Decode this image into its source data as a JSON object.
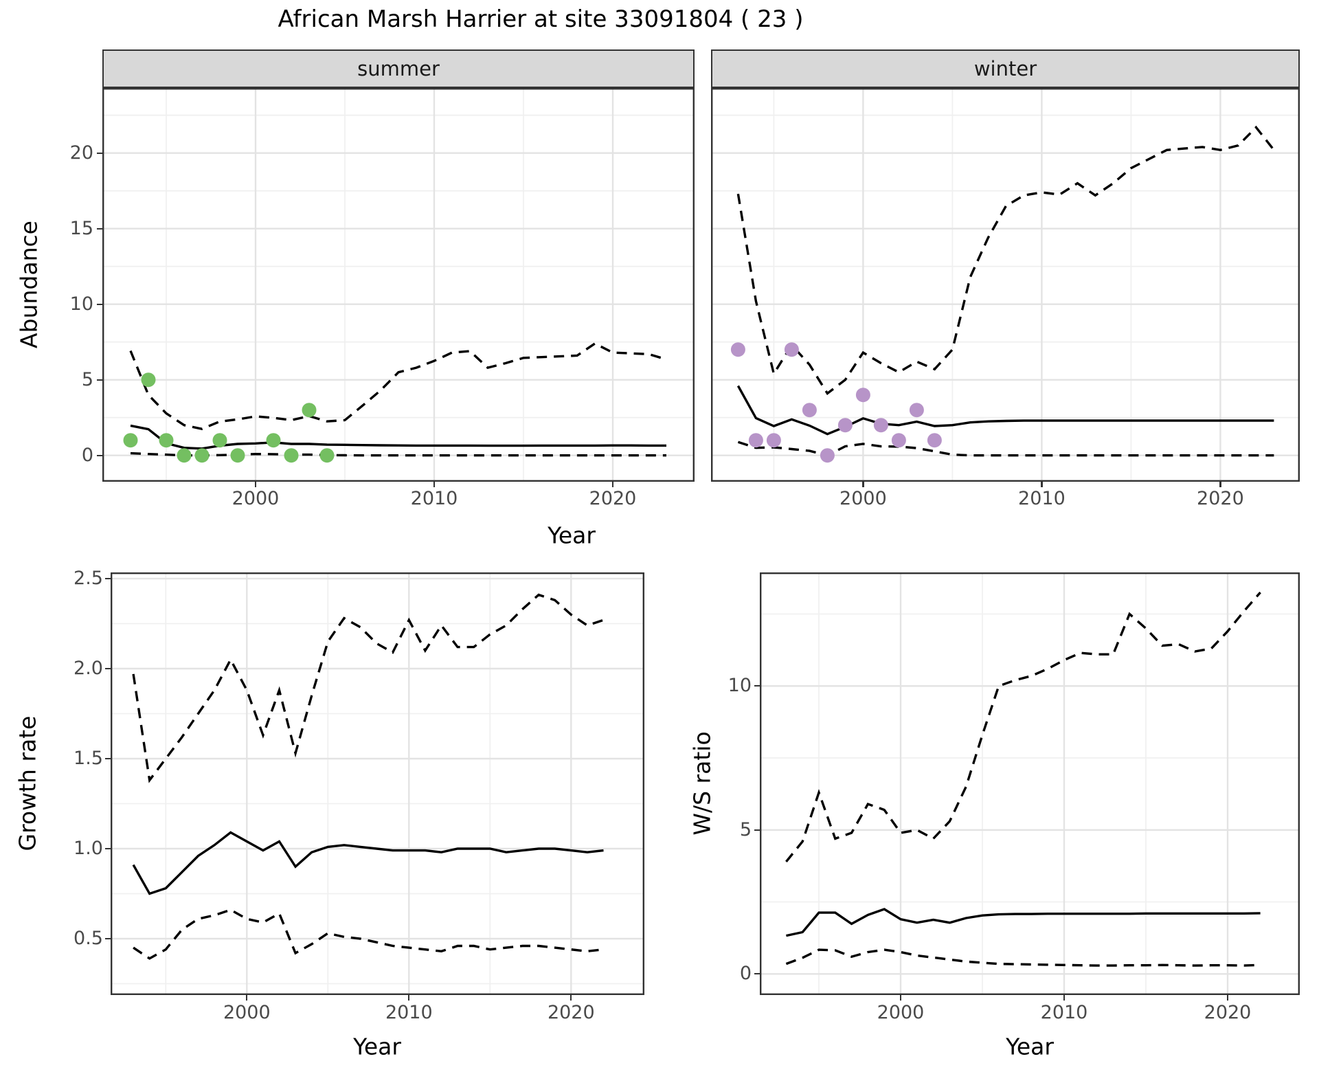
{
  "title": "African Marsh Harrier at site 33091804 ( 23 )",
  "colors": {
    "summer_point": "#74bf61",
    "winter_point": "#b794c8",
    "line": "#000000",
    "strip_bg": "#d8d8d8",
    "grid_major": "#e3e3e3",
    "grid_minor": "#f0f0f0",
    "panel_border": "#333333",
    "tick_label": "#4a4a4a"
  },
  "facets": {
    "summer": "summer",
    "winter": "winter"
  },
  "axis_titles": {
    "abundance": "Abundance",
    "year_top": "Year",
    "growth": "Growth rate",
    "ws": "W/S ratio",
    "year_bottom_left": "Year",
    "year_bottom_right": "Year"
  },
  "chart_data": [
    {
      "type": "line",
      "panel": "summer",
      "title": "summer",
      "xlabel": "Year",
      "ylabel": "Abundance",
      "xlim": [
        1991.4,
        2024.6
      ],
      "ylim": [
        -1.74,
        24.3
      ],
      "x_tick_values": [
        2000,
        2010,
        2020
      ],
      "x_tick_labels": [
        "2000",
        "2010",
        "2020"
      ],
      "y_tick_values": [
        0,
        5,
        10,
        15,
        20
      ],
      "y_tick_labels": [
        "0",
        "5",
        "10",
        "15",
        "20"
      ],
      "years": [
        1993,
        1994,
        1995,
        1996,
        1997,
        1998,
        1999,
        2000,
        2001,
        2002,
        2003,
        2004,
        2005,
        2006,
        2007,
        2008,
        2009,
        2010,
        2011,
        2012,
        2013,
        2014,
        2015,
        2016,
        2017,
        2018,
        2019,
        2020,
        2021,
        2022,
        2023
      ],
      "series": [
        {
          "name": "median",
          "style": "solid",
          "values": [
            1.97,
            1.73,
            0.8,
            0.5,
            0.45,
            0.64,
            0.76,
            0.79,
            0.86,
            0.76,
            0.76,
            0.71,
            0.7,
            0.68,
            0.67,
            0.66,
            0.65,
            0.65,
            0.65,
            0.65,
            0.64,
            0.64,
            0.64,
            0.65,
            0.65,
            0.65,
            0.65,
            0.66,
            0.66,
            0.65,
            0.65
          ]
        },
        {
          "name": "upper 95% CI",
          "style": "dashed",
          "values": [
            6.92,
            4.0,
            2.78,
            2.0,
            1.75,
            2.24,
            2.38,
            2.58,
            2.48,
            2.33,
            2.6,
            2.25,
            2.33,
            3.3,
            4.3,
            5.5,
            5.8,
            6.25,
            6.8,
            6.9,
            5.8,
            6.1,
            6.45,
            6.5,
            6.55,
            6.6,
            7.4,
            6.8,
            6.75,
            6.7,
            6.35
          ]
        },
        {
          "name": "lower 95% CI",
          "style": "dashed",
          "values": [
            0.14,
            0.09,
            0.05,
            0.0,
            0.0,
            0.02,
            0.05,
            0.09,
            0.08,
            0.05,
            0.05,
            0.02,
            0.01,
            0.0,
            0.0,
            0.0,
            0.0,
            0.0,
            0.0,
            0.0,
            0.0,
            0.0,
            0.0,
            0.0,
            0.0,
            0.0,
            0.0,
            0.0,
            0.0,
            0.0,
            0.0
          ]
        }
      ],
      "points": {
        "name": "observed counts",
        "color_key": "summer_point",
        "years": [
          1993,
          1994,
          1995,
          1996,
          1997,
          1998,
          1999,
          2001,
          2002,
          2003,
          2004
        ],
        "values": [
          1,
          5,
          1,
          0,
          0,
          1,
          0,
          1,
          0,
          3,
          0
        ]
      }
    },
    {
      "type": "line",
      "panel": "winter",
      "title": "winter",
      "xlabel": "Year",
      "ylabel": "Abundance",
      "xlim": [
        1991.5,
        2024.4
      ],
      "ylim": [
        -1.74,
        24.3
      ],
      "x_tick_values": [
        2000,
        2010,
        2020
      ],
      "x_tick_labels": [
        "2000",
        "2010",
        "2020"
      ],
      "y_tick_values": [
        0,
        5,
        10,
        15,
        20
      ],
      "y_tick_labels": [
        "0",
        "5",
        "10",
        "15",
        "20"
      ],
      "years": [
        1993,
        1994,
        1995,
        1996,
        1997,
        1998,
        1999,
        2000,
        2001,
        2002,
        2003,
        2004,
        2005,
        2006,
        2007,
        2008,
        2009,
        2010,
        2011,
        2012,
        2013,
        2014,
        2015,
        2016,
        2017,
        2018,
        2019,
        2020,
        2021,
        2022,
        2023
      ],
      "series": [
        {
          "name": "median",
          "style": "solid",
          "values": [
            4.6,
            2.47,
            1.94,
            2.38,
            1.97,
            1.41,
            1.89,
            2.45,
            2.09,
            2.0,
            2.23,
            1.94,
            2.0,
            2.18,
            2.25,
            2.28,
            2.3,
            2.3,
            2.3,
            2.3,
            2.3,
            2.3,
            2.3,
            2.3,
            2.3,
            2.3,
            2.3,
            2.3,
            2.3,
            2.3,
            2.3
          ]
        },
        {
          "name": "upper 95% CI",
          "style": "dashed",
          "values": [
            17.3,
            10.2,
            5.4,
            7.3,
            6.0,
            4.1,
            5.0,
            6.8,
            6.1,
            5.5,
            6.2,
            5.7,
            7.0,
            11.8,
            14.4,
            16.5,
            17.2,
            17.4,
            17.25,
            18.0,
            17.2,
            18.0,
            19.0,
            19.6,
            20.2,
            20.3,
            20.4,
            20.2,
            20.5,
            21.7,
            20.2
          ]
        },
        {
          "name": "lower 95% CI",
          "style": "dashed",
          "values": [
            0.88,
            0.5,
            0.53,
            0.42,
            0.3,
            0.0,
            0.6,
            0.76,
            0.6,
            0.58,
            0.48,
            0.27,
            0.05,
            0.0,
            0.0,
            0.0,
            0.0,
            0.0,
            0.0,
            0.0,
            0.0,
            0.0,
            0.0,
            0.0,
            0.0,
            0.0,
            0.0,
            0.0,
            0.0,
            0.0,
            0.0
          ]
        }
      ],
      "points": {
        "name": "observed counts",
        "color_key": "winter_point",
        "years": [
          1993,
          1994,
          1995,
          1996,
          1997,
          1998,
          1999,
          2000,
          2001,
          2002,
          2003,
          2004
        ],
        "values": [
          7,
          1,
          1,
          7,
          3,
          0,
          2,
          4,
          2,
          1,
          3,
          1
        ]
      }
    },
    {
      "type": "line",
      "panel": "growth",
      "title": "",
      "xlabel": "Year",
      "ylabel": "Growth rate",
      "xlim": [
        1991.6,
        2024.5
      ],
      "ylim": [
        0.19,
        2.53
      ],
      "x_tick_values": [
        2000,
        2010,
        2020
      ],
      "x_tick_labels": [
        "2000",
        "2010",
        "2020"
      ],
      "y_tick_values": [
        0.5,
        1.0,
        1.5,
        2.0,
        2.5
      ],
      "y_tick_labels": [
        "0.5",
        "1.0",
        "1.5",
        "2.0",
        "2.5"
      ],
      "years": [
        1993,
        1994,
        1995,
        1996,
        1997,
        1998,
        1999,
        2000,
        2001,
        2002,
        2003,
        2004,
        2005,
        2006,
        2007,
        2008,
        2009,
        2010,
        2011,
        2012,
        2013,
        2014,
        2015,
        2016,
        2017,
        2018,
        2019,
        2020,
        2021,
        2022
      ],
      "series": [
        {
          "name": "median",
          "style": "solid",
          "values": [
            0.91,
            0.75,
            0.78,
            0.87,
            0.96,
            1.02,
            1.09,
            1.04,
            0.99,
            1.04,
            0.9,
            0.98,
            1.01,
            1.02,
            1.01,
            1.0,
            0.99,
            0.99,
            0.99,
            0.98,
            1.0,
            1.0,
            1.0,
            0.98,
            0.99,
            1.0,
            1.0,
            0.99,
            0.98,
            0.99
          ]
        },
        {
          "name": "upper 95% CI",
          "style": "dashed",
          "values": [
            1.97,
            1.38,
            1.5,
            1.62,
            1.75,
            1.88,
            2.05,
            1.88,
            1.63,
            1.88,
            1.53,
            1.85,
            2.15,
            2.28,
            2.23,
            2.14,
            2.09,
            2.27,
            2.1,
            2.24,
            2.12,
            2.12,
            2.19,
            2.24,
            2.33,
            2.41,
            2.38,
            2.3,
            2.24,
            2.27
          ]
        },
        {
          "name": "lower 95% CI",
          "style": "dashed",
          "values": [
            0.45,
            0.39,
            0.44,
            0.55,
            0.61,
            0.63,
            0.66,
            0.61,
            0.59,
            0.64,
            0.42,
            0.47,
            0.53,
            0.51,
            0.5,
            0.48,
            0.46,
            0.45,
            0.44,
            0.43,
            0.46,
            0.46,
            0.44,
            0.45,
            0.46,
            0.46,
            0.45,
            0.44,
            0.43,
            0.44
          ]
        }
      ]
    },
    {
      "type": "line",
      "panel": "ws",
      "title": "",
      "xlabel": "Year",
      "ylabel": "W/S ratio",
      "xlim": [
        1991.4,
        2024.4
      ],
      "ylim": [
        -0.73,
        13.94
      ],
      "x_tick_values": [
        2000,
        2010,
        2020
      ],
      "x_tick_labels": [
        "2000",
        "2010",
        "2020"
      ],
      "y_tick_values": [
        0,
        5,
        10
      ],
      "y_tick_labels": [
        "0",
        "5",
        "10"
      ],
      "years": [
        1993,
        1994,
        1995,
        1996,
        1997,
        1998,
        1999,
        2000,
        2001,
        2002,
        2003,
        2004,
        2005,
        2006,
        2007,
        2008,
        2009,
        2010,
        2011,
        2012,
        2013,
        2014,
        2015,
        2016,
        2017,
        2018,
        2019,
        2020,
        2021,
        2022
      ],
      "series": [
        {
          "name": "median",
          "style": "solid",
          "values": [
            1.33,
            1.45,
            2.13,
            2.13,
            1.74,
            2.05,
            2.25,
            1.9,
            1.78,
            1.88,
            1.78,
            1.94,
            2.03,
            2.07,
            2.08,
            2.08,
            2.09,
            2.09,
            2.09,
            2.09,
            2.09,
            2.09,
            2.1,
            2.1,
            2.1,
            2.1,
            2.1,
            2.1,
            2.1,
            2.11
          ]
        },
        {
          "name": "upper 95% CI",
          "style": "dashed",
          "values": [
            3.9,
            4.6,
            6.3,
            4.7,
            4.9,
            5.9,
            5.7,
            4.9,
            5.0,
            4.7,
            5.3,
            6.5,
            8.3,
            10.0,
            10.2,
            10.35,
            10.6,
            10.9,
            11.15,
            11.1,
            11.1,
            12.5,
            12.0,
            11.4,
            11.45,
            11.2,
            11.3,
            11.9,
            12.6,
            13.25
          ]
        },
        {
          "name": "lower 95% CI",
          "style": "dashed",
          "values": [
            0.35,
            0.56,
            0.84,
            0.82,
            0.6,
            0.76,
            0.84,
            0.76,
            0.64,
            0.57,
            0.5,
            0.43,
            0.39,
            0.35,
            0.34,
            0.33,
            0.32,
            0.31,
            0.3,
            0.29,
            0.29,
            0.3,
            0.3,
            0.31,
            0.3,
            0.29,
            0.3,
            0.3,
            0.29,
            0.31
          ]
        }
      ]
    }
  ]
}
